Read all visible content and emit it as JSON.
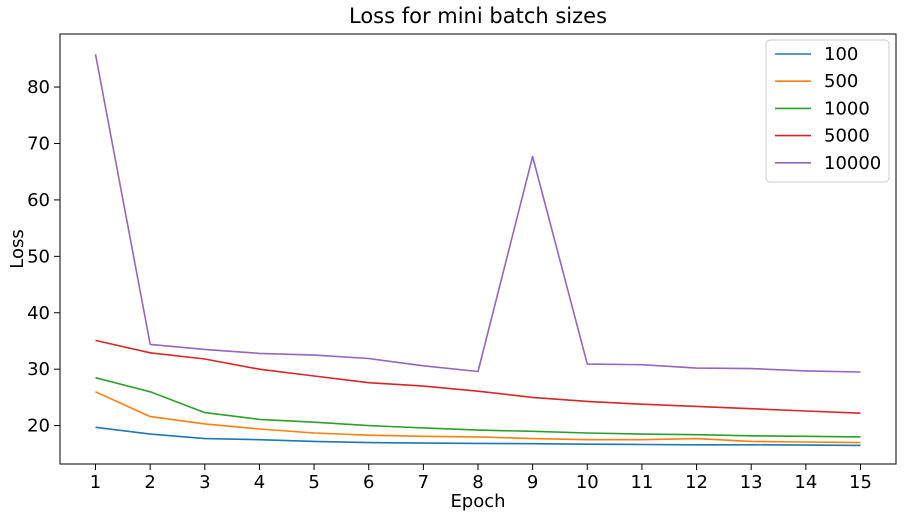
{
  "chart_data": {
    "type": "line",
    "title": "Loss for mini batch sizes",
    "xlabel": "Epoch",
    "ylabel": "Loss",
    "x": [
      1,
      2,
      3,
      4,
      5,
      6,
      7,
      8,
      9,
      10,
      11,
      12,
      13,
      14,
      15
    ],
    "xticks": [
      "1",
      "2",
      "3",
      "4",
      "5",
      "6",
      "7",
      "8",
      "9",
      "10",
      "11",
      "12",
      "13",
      "14",
      "15"
    ],
    "yticks": [
      20,
      30,
      40,
      50,
      60,
      70,
      80
    ],
    "xlim": [
      0.35,
      15.65
    ],
    "ylim": [
      13.2,
      89.4
    ],
    "grid": false,
    "legend_position": "top-right",
    "series": [
      {
        "name": "100",
        "color": "#1f77b4",
        "values": [
          19.7,
          18.5,
          17.7,
          17.5,
          17.2,
          17.0,
          16.9,
          16.85,
          16.8,
          16.7,
          16.65,
          16.6,
          16.6,
          16.55,
          16.5
        ]
      },
      {
        "name": "500",
        "color": "#ff7f0e",
        "values": [
          26.0,
          21.6,
          20.3,
          19.4,
          18.7,
          18.3,
          18.1,
          18.0,
          17.7,
          17.5,
          17.5,
          17.7,
          17.2,
          17.1,
          17.0
        ]
      },
      {
        "name": "1000",
        "color": "#2ca02c",
        "values": [
          28.5,
          26.0,
          22.3,
          21.1,
          20.6,
          20.0,
          19.6,
          19.2,
          19.0,
          18.7,
          18.5,
          18.4,
          18.2,
          18.1,
          18.0
        ]
      },
      {
        "name": "5000",
        "color": "#d62728",
        "values": [
          35.1,
          32.9,
          31.8,
          30.0,
          28.8,
          27.6,
          27.0,
          26.1,
          25.0,
          24.3,
          23.8,
          23.4,
          23.0,
          22.6,
          22.2
        ]
      },
      {
        "name": "10000",
        "color": "#9467bd",
        "values": [
          85.8,
          34.4,
          33.5,
          32.8,
          32.5,
          31.9,
          30.6,
          29.6,
          67.7,
          30.9,
          30.8,
          30.2,
          30.1,
          29.7,
          29.5
        ]
      }
    ]
  }
}
